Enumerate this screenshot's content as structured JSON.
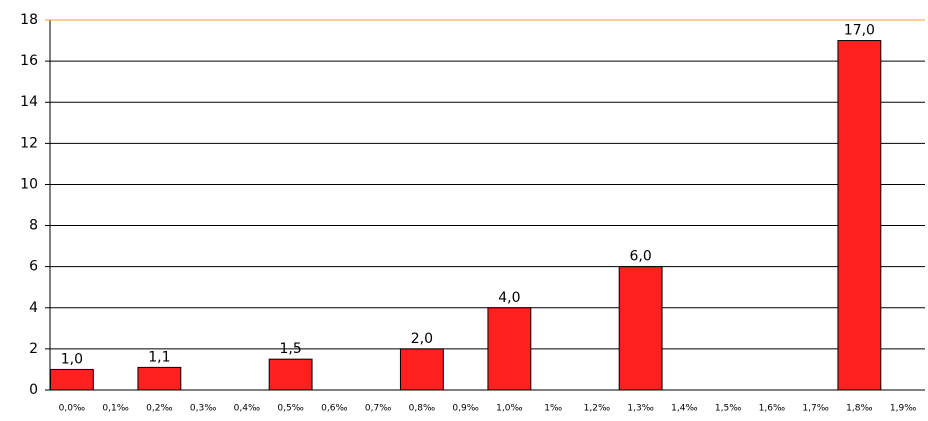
{
  "chart_data": {
    "type": "bar",
    "categories": [
      "0,0‰",
      "0,1‰",
      "0,2‰",
      "0,3‰",
      "0,4‰",
      "0,5‰",
      "0,6‰",
      "0,7‰",
      "0,8‰",
      "0,9‰",
      "1,0‰",
      "1‰",
      "1,2‰",
      "1,3‰",
      "1,4‰",
      "1,5‰",
      "1,6‰",
      "1,7‰",
      "1,8‰",
      "1,9‰"
    ],
    "values": [
      1,
      null,
      1.1,
      null,
      null,
      1.5,
      null,
      null,
      2,
      null,
      4,
      null,
      null,
      6,
      null,
      null,
      null,
      null,
      17,
      null
    ],
    "value_labels": [
      "1,0",
      null,
      "1,1",
      null,
      null,
      "1,5",
      null,
      null,
      "2,0",
      null,
      "4,0",
      null,
      null,
      "6,0",
      null,
      null,
      null,
      null,
      "17,0",
      null
    ],
    "color": "#ff2020",
    "ylim": [
      0,
      18
    ],
    "yticks": [
      0,
      2,
      4,
      6,
      8,
      10,
      12,
      14,
      16,
      18
    ],
    "grid": true
  }
}
